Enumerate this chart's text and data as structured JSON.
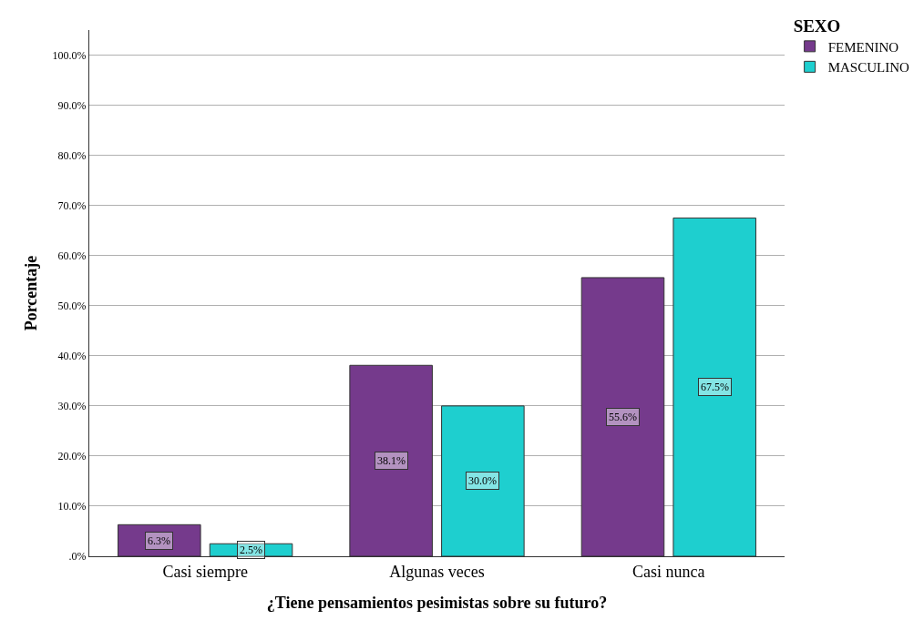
{
  "chart_data": {
    "type": "bar",
    "xlabel": "¿Tiene pensamientos pesimistas sobre su futuro?",
    "ylabel": "Porcentaje",
    "legend_title": "SEXO",
    "legend": "top right",
    "categories": [
      "Casi siempre",
      "Algunas veces",
      "Casi nunca"
    ],
    "series": [
      {
        "name": "FEMENINO",
        "color": "#753a8c",
        "values": [
          6.3,
          38.1,
          55.6
        ],
        "value_labels": [
          "6.3%",
          "38.1%",
          "55.6%"
        ]
      },
      {
        "name": "MASCULINO",
        "color": "#1ecfcf",
        "values": [
          2.5,
          30.0,
          67.5
        ],
        "value_labels": [
          "2.5%",
          "30.0%",
          "67.5%"
        ]
      }
    ],
    "ylim": [
      0,
      105
    ],
    "yticks": [
      {
        "value": 0,
        "label": ".0%"
      },
      {
        "value": 10,
        "label": "10.0%"
      },
      {
        "value": 20,
        "label": "20.0%"
      },
      {
        "value": 30,
        "label": "30.0%"
      },
      {
        "value": 40,
        "label": "40.0%"
      },
      {
        "value": 50,
        "label": "50.0%"
      },
      {
        "value": 60,
        "label": "60.0%"
      },
      {
        "value": 70,
        "label": "70.0%"
      },
      {
        "value": 80,
        "label": "80.0%"
      },
      {
        "value": 90,
        "label": "90.0%"
      },
      {
        "value": 100,
        "label": "100.0%"
      }
    ],
    "grid": "y"
  }
}
